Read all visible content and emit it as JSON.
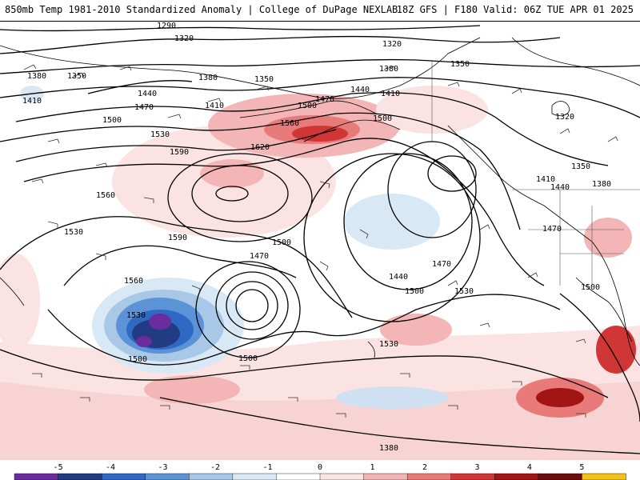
{
  "header": {
    "title": "850mb Temp 1981-2010 Standardized Anomaly | College of DuPage NEXLAB",
    "run": "18Z GFS | F180 Valid: 06Z TUE APR 01 2025"
  },
  "contour_labels": [
    "1290",
    "1320",
    "1320",
    "1350",
    "1350",
    "1350",
    "1380",
    "1380",
    "1380",
    "1380",
    "1410",
    "1410",
    "1410",
    "1410",
    "1440",
    "1440",
    "1440",
    "1440",
    "1470",
    "1470",
    "1470",
    "1470",
    "1470",
    "1500",
    "1500",
    "1500",
    "1500",
    "1500",
    "1500",
    "1500",
    "1530",
    "1530",
    "1530",
    "1530",
    "1530",
    "1560",
    "1560",
    "1560",
    "1590",
    "1590",
    "1620",
    "1320",
    "1500",
    "1350",
    "1380"
  ],
  "colorbar": {
    "ticks": [
      "-5",
      "-4",
      "-3",
      "-2",
      "-1",
      "0",
      "1",
      "2",
      "3",
      "4",
      "5"
    ],
    "colors": [
      "#6a2c9e",
      "#223b82",
      "#2f69c4",
      "#5b93d6",
      "#a9c8e8",
      "#d9e8f5",
      "#ffffff",
      "#fbe3e3",
      "#f3b5b5",
      "#e87a7a",
      "#d03636",
      "#a31515",
      "#6e0b0b",
      "#f5c018"
    ]
  }
}
